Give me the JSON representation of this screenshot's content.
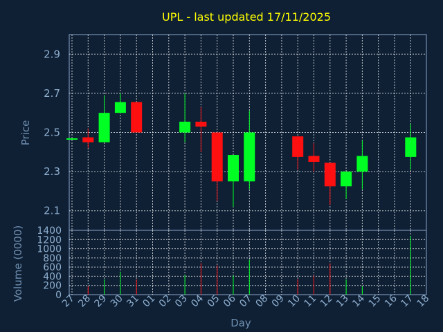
{
  "chart_data": [
    {
      "type": "candlestick",
      "title": "UPL - last updated 17/11/2025",
      "ylabel": "Price",
      "ylim": [
        2.0,
        3.0
      ],
      "yticks": [
        "2.9",
        "2.7",
        "2.5",
        "2.3",
        "2.1"
      ],
      "ytick_values": [
        2.9,
        2.7,
        2.5,
        2.3,
        2.1
      ],
      "grid": true,
      "up_color": "#00ff22",
      "down_color": "#ff1010",
      "candles": [
        {
          "day": "27",
          "open": 2.47,
          "high": 2.47,
          "low": 2.47,
          "close": 2.47
        },
        {
          "day": "28",
          "open": 2.475,
          "high": 2.52,
          "low": 2.42,
          "close": 2.45
        },
        {
          "day": "29",
          "open": 2.45,
          "high": 2.69,
          "low": 2.45,
          "close": 2.6
        },
        {
          "day": "30",
          "open": 2.6,
          "high": 2.7,
          "low": 2.6,
          "close": 2.655
        },
        {
          "day": "31",
          "open": 2.655,
          "high": 2.655,
          "low": 2.5,
          "close": 2.5
        },
        {
          "day": "03",
          "open": 2.5,
          "high": 2.7,
          "low": 2.45,
          "close": 2.555
        },
        {
          "day": "04",
          "open": 2.555,
          "high": 2.63,
          "low": 2.4,
          "close": 2.53
        },
        {
          "day": "05",
          "open": 2.5,
          "high": 2.5,
          "low": 2.15,
          "close": 2.25
        },
        {
          "day": "06",
          "open": 2.25,
          "high": 2.385,
          "low": 2.12,
          "close": 2.385
        },
        {
          "day": "07",
          "open": 2.25,
          "high": 2.61,
          "low": 2.21,
          "close": 2.5
        },
        {
          "day": "10",
          "open": 2.48,
          "high": 2.48,
          "low": 2.31,
          "close": 2.375
        },
        {
          "day": "11",
          "open": 2.38,
          "high": 2.445,
          "low": 2.3,
          "close": 2.35
        },
        {
          "day": "12",
          "open": 2.345,
          "high": 2.345,
          "low": 2.13,
          "close": 2.225
        },
        {
          "day": "13",
          "open": 2.225,
          "high": 2.3,
          "low": 2.16,
          "close": 2.3
        },
        {
          "day": "14",
          "open": 2.3,
          "high": 2.46,
          "low": 2.21,
          "close": 2.38
        },
        {
          "day": "17",
          "open": 2.375,
          "high": 2.545,
          "low": 2.31,
          "close": 2.475
        }
      ]
    },
    {
      "type": "bar",
      "xlabel": "Day",
      "ylabel": "Volume (0000)",
      "ylim": [
        0,
        1400
      ],
      "yticks": [
        "1400",
        "1200",
        "1000",
        "800",
        "600",
        "400",
        "200",
        "0"
      ],
      "ytick_values": [
        1400,
        1200,
        1000,
        800,
        600,
        400,
        200,
        0
      ],
      "categories": [
        "27",
        "28",
        "29",
        "30",
        "31",
        "01",
        "02",
        "03",
        "04",
        "05",
        "06",
        "07",
        "08",
        "09",
        "10",
        "11",
        "12",
        "13",
        "14",
        "15",
        "16",
        "17",
        "18"
      ],
      "volumes": [
        {
          "day": "28",
          "value": 180,
          "color": "#ff1010"
        },
        {
          "day": "29",
          "value": 330,
          "color": "#00ff22"
        },
        {
          "day": "30",
          "value": 500,
          "color": "#00ff22"
        },
        {
          "day": "31",
          "value": 330,
          "color": "#ff1010"
        },
        {
          "day": "03",
          "value": 430,
          "color": "#00ff22"
        },
        {
          "day": "04",
          "value": 690,
          "color": "#ff1010"
        },
        {
          "day": "05",
          "value": 640,
          "color": "#ff1010"
        },
        {
          "day": "06",
          "value": 420,
          "color": "#00ff22"
        },
        {
          "day": "07",
          "value": 760,
          "color": "#00ff22"
        },
        {
          "day": "10",
          "value": 340,
          "color": "#ff1010"
        },
        {
          "day": "11",
          "value": 420,
          "color": "#ff1010"
        },
        {
          "day": "12",
          "value": 680,
          "color": "#ff1010"
        },
        {
          "day": "13",
          "value": 330,
          "color": "#00ff22"
        },
        {
          "day": "14",
          "value": 180,
          "color": "#00ff22"
        },
        {
          "day": "17",
          "value": 1280,
          "color": "#00ff22"
        }
      ]
    }
  ]
}
